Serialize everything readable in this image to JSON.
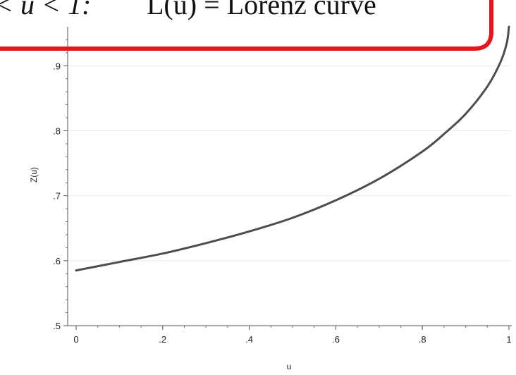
{
  "callout": {
    "math_prefix": "< u < 1:",
    "text": "L(u) = Lorenz curve",
    "border_color": "#e8141b"
  },
  "chart_data": {
    "type": "line",
    "title": "",
    "xlabel": "u",
    "ylabel": "Z(u)",
    "xlim": [
      0,
      1
    ],
    "ylim": [
      0.5,
      0.96
    ],
    "x_ticks": [
      0,
      0.2,
      0.4,
      0.6,
      0.8,
      1
    ],
    "x_tick_labels": [
      "0",
      ".2",
      ".4",
      ".6",
      ".8",
      "1"
    ],
    "y_ticks": [
      0.5,
      0.6,
      0.7,
      0.8,
      0.9
    ],
    "y_tick_labels": [
      ".5",
      ".6",
      ".7",
      ".8",
      ".9"
    ],
    "grid": true,
    "line_color": "#4d4d4d",
    "series": [
      {
        "x": [
          0,
          0.1,
          0.2,
          0.3,
          0.4,
          0.5,
          0.6,
          0.7,
          0.8,
          0.85,
          0.9,
          0.95,
          0.98,
          0.995,
          1
        ],
        "y": [
          0.585,
          0.598,
          0.611,
          0.627,
          0.645,
          0.666,
          0.693,
          0.726,
          0.768,
          0.795,
          0.826,
          0.868,
          0.905,
          0.935,
          0.96
        ]
      }
    ]
  }
}
